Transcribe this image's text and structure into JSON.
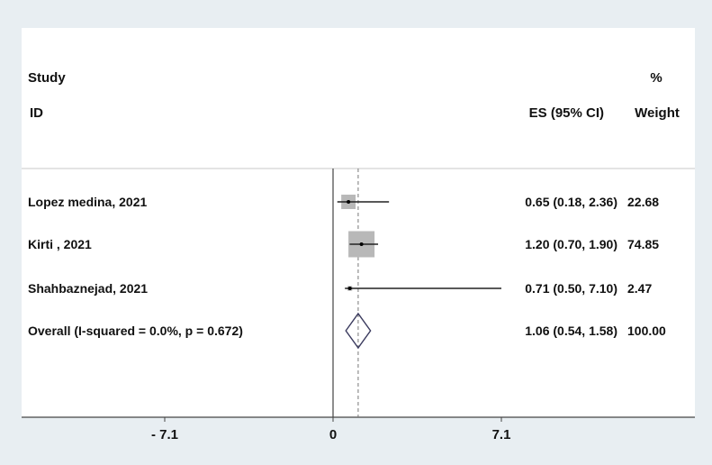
{
  "chart_data": {
    "type": "forest",
    "header": {
      "study": "Study",
      "id": "ID",
      "es": "ES (95% CI)",
      "pct": "%",
      "weight": "Weight"
    },
    "studies": [
      {
        "label": "Lopez medina, 2021",
        "es": 0.65,
        "lo": 0.18,
        "hi": 2.36,
        "es_text": "0.65 (0.18, 2.36)",
        "weight": 22.68,
        "weight_text": "22.68"
      },
      {
        "label": "Kirti , 2021",
        "es": 1.2,
        "lo": 0.7,
        "hi": 1.9,
        "es_text": "1.20 (0.70, 1.90)",
        "weight": 74.85,
        "weight_text": "74.85"
      },
      {
        "label": "Shahbaznejad, 2021",
        "es": 0.71,
        "lo": 0.5,
        "hi": 7.1,
        "es_text": "0.71 (0.50, 7.10)",
        "weight": 2.47,
        "weight_text": "2.47"
      }
    ],
    "overall": {
      "label": "Overall (I-squared = 0.0%, p = 0.672)",
      "es": 1.06,
      "lo": 0.54,
      "hi": 1.58,
      "es_text": "1.06 (0.54, 1.58)",
      "weight_text": "100.00"
    },
    "xticks": [
      {
        "value": -7.1,
        "label": "- 7.1"
      },
      {
        "value": 0,
        "label": "0"
      },
      {
        "value": 7.1,
        "label": "7.1"
      }
    ],
    "null_line": 0,
    "colors": {
      "background": "#e8eef2",
      "panel": "#ffffff",
      "box": "#b8b8b8",
      "diamond": "#3a3a5e",
      "line": "#222222"
    }
  }
}
